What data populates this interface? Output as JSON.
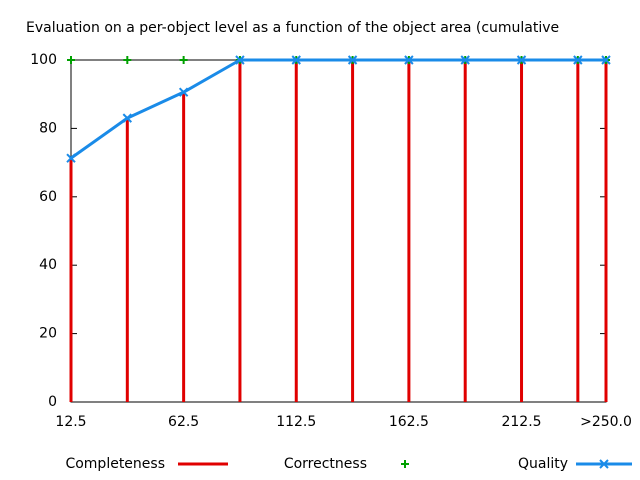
{
  "chart_data": {
    "type": "line",
    "title": "Evaluation on a per-object level as a function of the object area (cumulative",
    "x": [
      12.5,
      37.5,
      62.5,
      87.5,
      112.5,
      137.5,
      162.5,
      187.5,
      212.5,
      237.5,
      250
    ],
    "xlim": [
      12.5,
      250
    ],
    "xticks": [
      12.5,
      62.5,
      112.5,
      162.5,
      212.5,
      {
        "value": 250,
        "label": ">250.0"
      }
    ],
    "ylim": [
      0,
      100
    ],
    "yticks": [
      0,
      20,
      40,
      60,
      80,
      100
    ],
    "legend": "bottom",
    "series": [
      {
        "name": "Completeness",
        "color": "#e00000",
        "style": "impulses",
        "values": [
          71.3,
          83.0,
          90.6,
          100,
          100,
          100,
          100,
          100,
          100,
          100,
          100
        ]
      },
      {
        "name": "Correctness",
        "color": "#00a000",
        "style": "points",
        "values": [
          100,
          100,
          100,
          100,
          100,
          100,
          100,
          100,
          100,
          100,
          100
        ]
      },
      {
        "name": "Quality",
        "color": "#1a8be8",
        "style": "linespoints",
        "values": [
          71.3,
          83.0,
          90.6,
          100,
          100,
          100,
          100,
          100,
          100,
          100,
          100
        ]
      }
    ]
  }
}
